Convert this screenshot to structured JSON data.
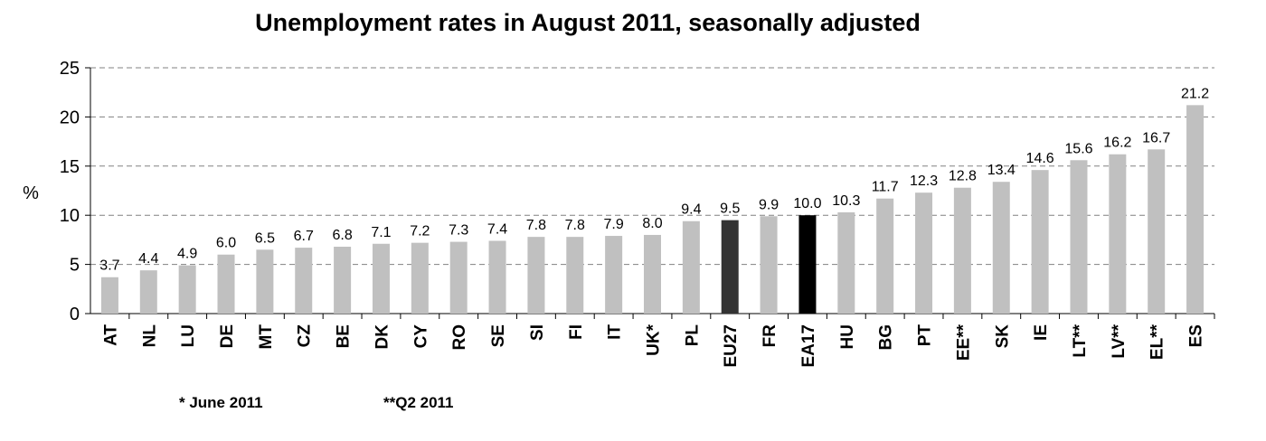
{
  "chart_data": {
    "type": "bar",
    "title": "Unemployment rates in August 2011, seasonally adjusted",
    "ylabel": "%",
    "xlabel": "",
    "ylim": [
      0,
      25
    ],
    "yticks": [
      "0",
      "5",
      "10",
      "15",
      "20",
      "25"
    ],
    "grid": true,
    "categories": [
      "AT",
      "NL",
      "LU",
      "DE",
      "MT",
      "CZ",
      "BE",
      "DK",
      "CY",
      "RO",
      "SE",
      "SI",
      "FI",
      "IT",
      "UK*",
      "PL",
      "EU27",
      "FR",
      "EA17",
      "HU",
      "BG",
      "PT",
      "EE**",
      "SK",
      "IE",
      "LT**",
      "LV**",
      "EL**",
      "ES"
    ],
    "values": [
      3.7,
      4.4,
      4.9,
      6.0,
      6.5,
      6.7,
      6.8,
      7.1,
      7.2,
      7.3,
      7.4,
      7.8,
      7.8,
      7.9,
      8.0,
      9.4,
      9.5,
      9.9,
      10.0,
      10.3,
      11.7,
      12.3,
      12.8,
      13.4,
      14.6,
      15.6,
      16.2,
      16.7,
      21.2
    ],
    "value_labels": [
      "3.7",
      "4.4",
      "4.9",
      "6.0",
      "6.5",
      "6.7",
      "6.8",
      "7.1",
      "7.2",
      "7.3",
      "7.4",
      "7.8",
      "7.8",
      "7.9",
      "8.0",
      "9.4",
      "9.5",
      "9.9",
      "10.0",
      "10.3",
      "11.7",
      "12.3",
      "12.8",
      "13.4",
      "14.6",
      "15.6",
      "16.2",
      "16.7",
      "21.2"
    ],
    "colors": {
      "default": "#c0c0c0",
      "EU27": "#333333",
      "EA17": "#000000"
    }
  },
  "footnotes": {
    "june": "* June 2011",
    "q2": "**Q2 2011"
  }
}
